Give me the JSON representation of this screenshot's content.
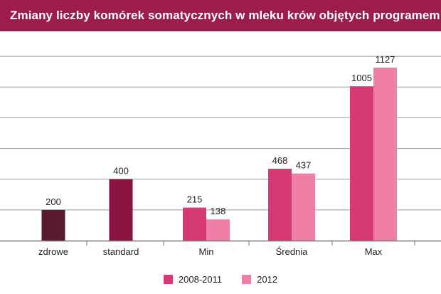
{
  "chart_data": {
    "type": "bar",
    "title": "Zmiany liczby komórek somatycznych w mleku krów objętych programem",
    "categories": [
      "zdrowe",
      "standard",
      "Min",
      "Średnia",
      "Max"
    ],
    "series": [
      {
        "name": "2008-2011",
        "values": [
          200,
          400,
          215,
          468,
          1005
        ],
        "labels": [
          "200",
          "400",
          "215",
          "468",
          "1005"
        ],
        "color": "#d63a74",
        "special_colors": {
          "0": "#5a1a2e",
          "1": "#8a1240"
        }
      },
      {
        "name": "2012",
        "values": [
          null,
          null,
          138,
          437,
          1127
        ],
        "labels": [
          "",
          "",
          "138",
          "437",
          "1127"
        ],
        "color": "#f07fa8"
      }
    ],
    "ylim": [
      0,
      1400
    ],
    "gridlines": [
      200,
      400,
      600,
      800,
      1000,
      1200
    ],
    "grid": true,
    "legend_position": "bottom"
  },
  "colors": {
    "title_bar": "#9e1b4e",
    "grid": "#9a9a9a",
    "baseline": "#777777"
  }
}
